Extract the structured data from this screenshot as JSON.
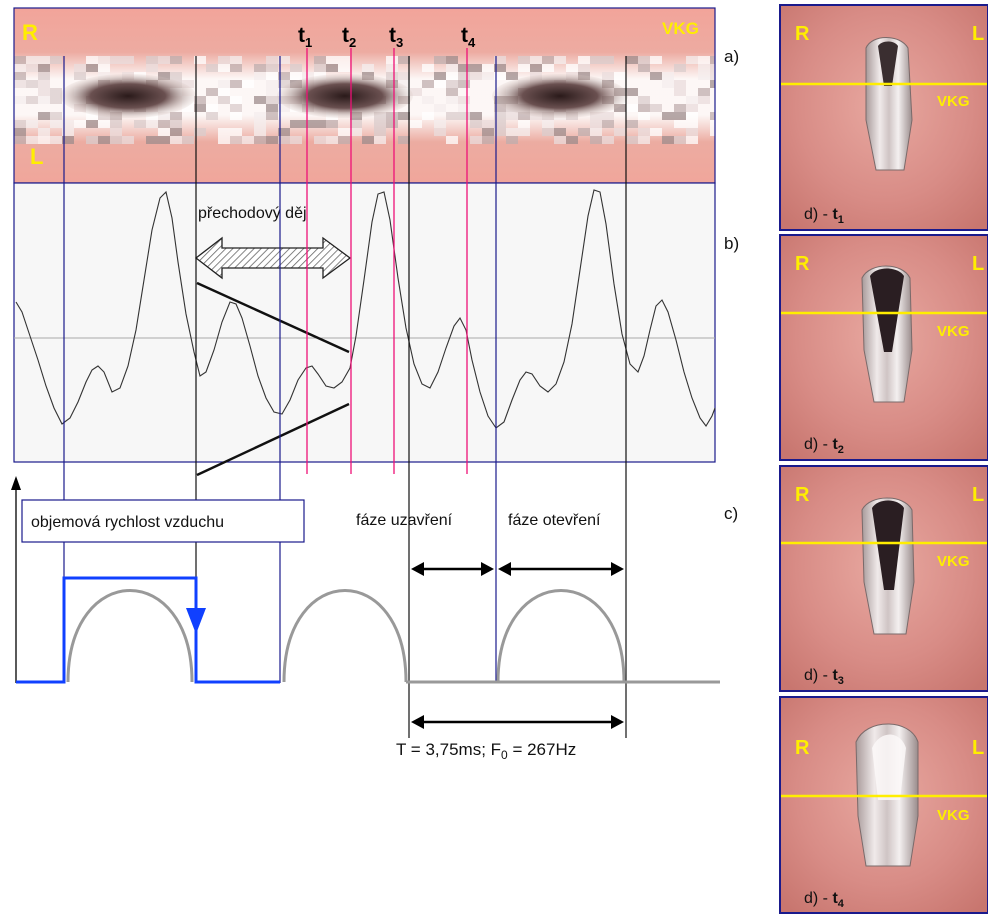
{
  "kymogram": {
    "label_right": "R",
    "label_left": "L",
    "label_vkg": "VKG",
    "panel_letter": "a)",
    "time_markers": [
      {
        "base": "t",
        "sub": "1"
      },
      {
        "base": "t",
        "sub": "2"
      },
      {
        "base": "t",
        "sub": "3"
      },
      {
        "base": "t",
        "sub": "4"
      }
    ]
  },
  "waveform": {
    "panel_letter": "b)",
    "transition_label": "přechodový děj"
  },
  "airflow": {
    "panel_letter": "c)",
    "box_label": "objemová rychlost vzduchu",
    "closing_phase": "fáze uzavření",
    "opening_phase": "fáze otevření",
    "period_text": "T = 3,75ms;  F",
    "f0_sub": "0",
    "f0_value": " = 267Hz"
  },
  "frames": [
    {
      "label_r": "R",
      "label_l": "L",
      "label_vkg": "VKG",
      "caption": "d) - ",
      "tbase": "t",
      "tsub": "1"
    },
    {
      "label_r": "R",
      "label_l": "L",
      "label_vkg": "VKG",
      "caption": "d) - ",
      "tbase": "t",
      "tsub": "2"
    },
    {
      "label_r": "R",
      "label_l": "L",
      "label_vkg": "VKG",
      "caption": "d) - ",
      "tbase": "t",
      "tsub": "3"
    },
    {
      "label_r": "R",
      "label_l": "L",
      "label_vkg": "VKG",
      "caption": "d) - ",
      "tbase": "t",
      "tsub": "4"
    }
  ],
  "colors": {
    "frame_border": "#1a1a8c",
    "cycle_line": "#1a1a8c",
    "marker_line": "#ee1177",
    "signal": "#333333",
    "flow_blue": "#1040ff",
    "flow_gray": "#999999",
    "label_yellow": "#ffee00"
  }
}
